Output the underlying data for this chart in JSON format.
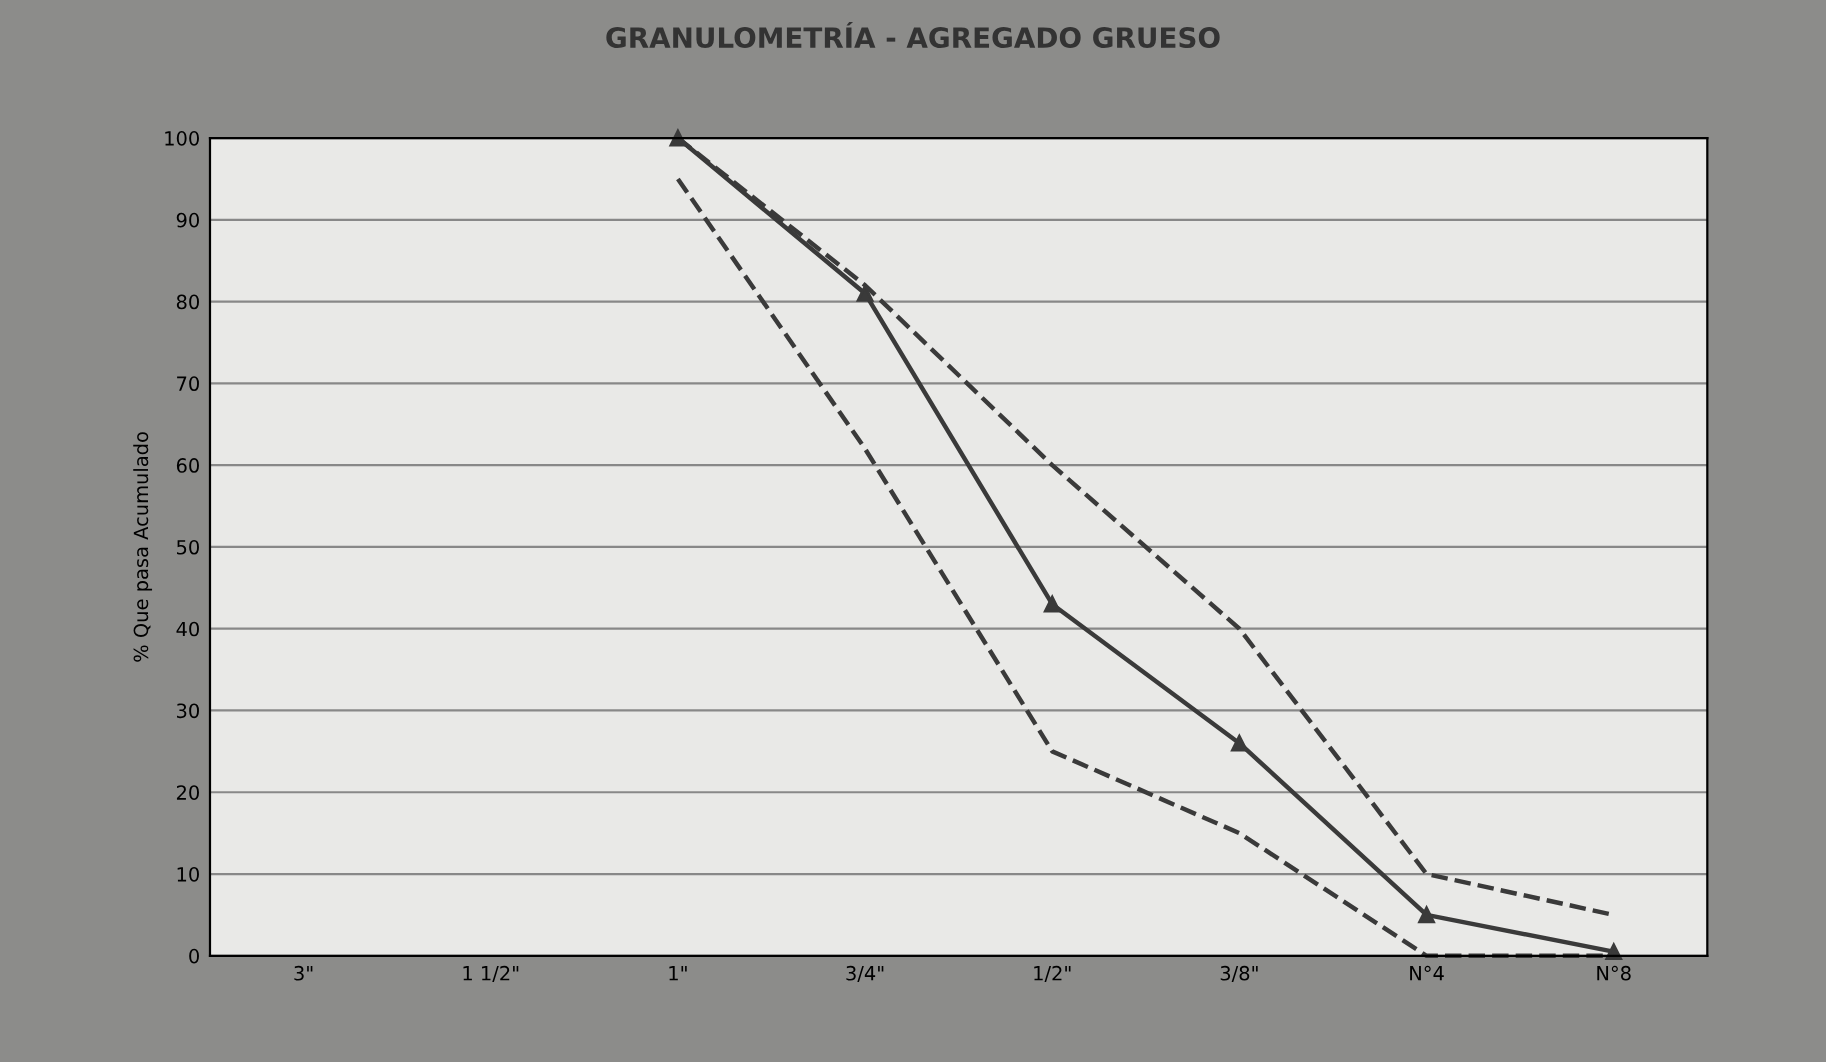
{
  "chart_data": {
    "type": "line",
    "title": "GRANULOMETRÍA - AGREGADO GRUESO",
    "ylabel": "% Que pasa Acumulado",
    "categories": [
      "3\"",
      "1 1/2\"",
      "1\"",
      "3/4\"",
      "1/2\"",
      "3/8\"",
      "N°4",
      "N°8"
    ],
    "series": [
      {
        "color": "#3a3a3a",
        "values": [
          null,
          null,
          100,
          81,
          43,
          26,
          5,
          0.5
        ],
        "marker": "triangle",
        "line_style": "solid"
      },
      {
        "color": "#3a3a3a",
        "values": [
          null,
          null,
          95,
          62,
          25,
          15,
          0,
          0
        ],
        "marker": "none",
        "line_style": "dashed"
      },
      {
        "color": "#3a3a3a",
        "values": [
          null,
          null,
          100,
          82,
          60,
          40,
          10,
          5
        ],
        "marker": "none",
        "line_style": "dashed"
      }
    ],
    "ylim": [
      0,
      100
    ],
    "yticks": [
      0,
      10,
      20,
      30,
      40,
      50,
      60,
      70,
      80,
      90,
      100
    ],
    "grid": "y",
    "legend": false
  }
}
